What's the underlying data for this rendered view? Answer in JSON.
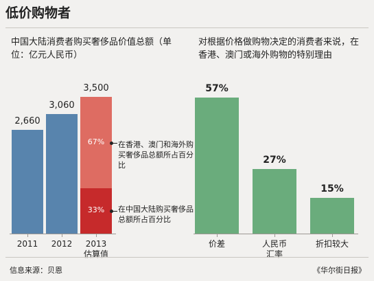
{
  "title": "低价购物者",
  "left_chart": {
    "subtitle": "中国大陆消费者购买奢侈品价值总额（单位：亿元人民币）",
    "annotation_top": "在香港、澳门和海外购买奢侈品总额所占百分比",
    "annotation_bottom": "在中国大陆购买奢侈品总额所占百分比"
  },
  "right_chart": {
    "subtitle": "对根据价格做购物决定的消费者来说，在香港、澳门或海外购物的特别理由"
  },
  "footer": {
    "source": "信息来源：贝恩",
    "brand": "《华尔街日报》"
  },
  "colors": {
    "left_bar": "#5884ad",
    "overseas": "#de6c62",
    "mainland": "#c62a2b",
    "right_bar": "#6aac7c"
  },
  "chart_data": [
    {
      "type": "bar",
      "categories": [
        "2011",
        "2012",
        "2013\n估算值"
      ],
      "values": [
        2660,
        3060,
        3500
      ],
      "value_labels": [
        "2,660",
        "3,060",
        "3,500"
      ],
      "stacked_last": {
        "overseas_pct": 67,
        "mainland_pct": 33,
        "labels": [
          "67%",
          "33%"
        ]
      },
      "ylim": [
        0,
        3500
      ]
    },
    {
      "type": "bar",
      "categories": [
        "价差",
        "人民币\n汇率",
        "折扣较大"
      ],
      "values": [
        57,
        27,
        15
      ],
      "value_labels": [
        "57%",
        "27%",
        "15%"
      ],
      "ylim": [
        0,
        57
      ]
    }
  ]
}
